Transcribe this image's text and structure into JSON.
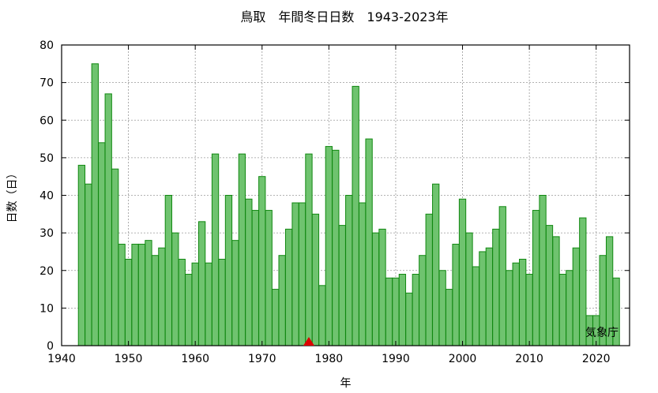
{
  "chart_data": {
    "type": "bar",
    "title": "鳥取　年間冬日日数　1943-2023年",
    "xlabel": "年",
    "ylabel": "日数（日）",
    "source": "気象庁",
    "x": [
      1943,
      1944,
      1945,
      1946,
      1947,
      1948,
      1949,
      1950,
      1951,
      1952,
      1953,
      1954,
      1955,
      1956,
      1957,
      1958,
      1959,
      1960,
      1961,
      1962,
      1963,
      1964,
      1965,
      1966,
      1967,
      1968,
      1969,
      1970,
      1971,
      1972,
      1973,
      1974,
      1975,
      1976,
      1977,
      1978,
      1979,
      1980,
      1981,
      1982,
      1983,
      1984,
      1985,
      1986,
      1987,
      1988,
      1989,
      1990,
      1991,
      1992,
      1993,
      1994,
      1995,
      1996,
      1997,
      1998,
      1999,
      2000,
      2001,
      2002,
      2003,
      2004,
      2005,
      2006,
      2007,
      2008,
      2009,
      2010,
      2011,
      2012,
      2013,
      2014,
      2015,
      2016,
      2017,
      2018,
      2019,
      2020,
      2021,
      2022,
      2023
    ],
    "values": [
      48,
      43,
      75,
      54,
      67,
      47,
      27,
      23,
      27,
      27,
      28,
      24,
      26,
      40,
      30,
      23,
      19,
      22,
      33,
      22,
      51,
      23,
      40,
      28,
      51,
      39,
      36,
      45,
      36,
      15,
      24,
      31,
      38,
      38,
      51,
      35,
      16,
      53,
      52,
      32,
      40,
      69,
      38,
      55,
      30,
      31,
      18,
      18,
      19,
      14,
      19,
      24,
      35,
      43,
      20,
      15,
      27,
      39,
      30,
      21,
      25,
      26,
      31,
      37,
      20,
      22,
      23,
      19,
      36,
      40,
      32,
      29,
      19,
      20,
      26,
      34,
      8,
      8,
      24,
      29,
      18
    ],
    "xlim": [
      1940,
      2025
    ],
    "ylim": [
      0,
      80
    ],
    "xticks": [
      1940,
      1950,
      1960,
      1970,
      1980,
      1990,
      2000,
      2010,
      2020
    ],
    "yticks": [
      0,
      10,
      20,
      30,
      40,
      50,
      60,
      70,
      80
    ],
    "marker_year": 1977,
    "grid": true,
    "colors": {
      "bar_fill": "#6fc36f",
      "bar_stroke": "#118811",
      "marker": "#dd0000",
      "grid": "#999999"
    }
  }
}
